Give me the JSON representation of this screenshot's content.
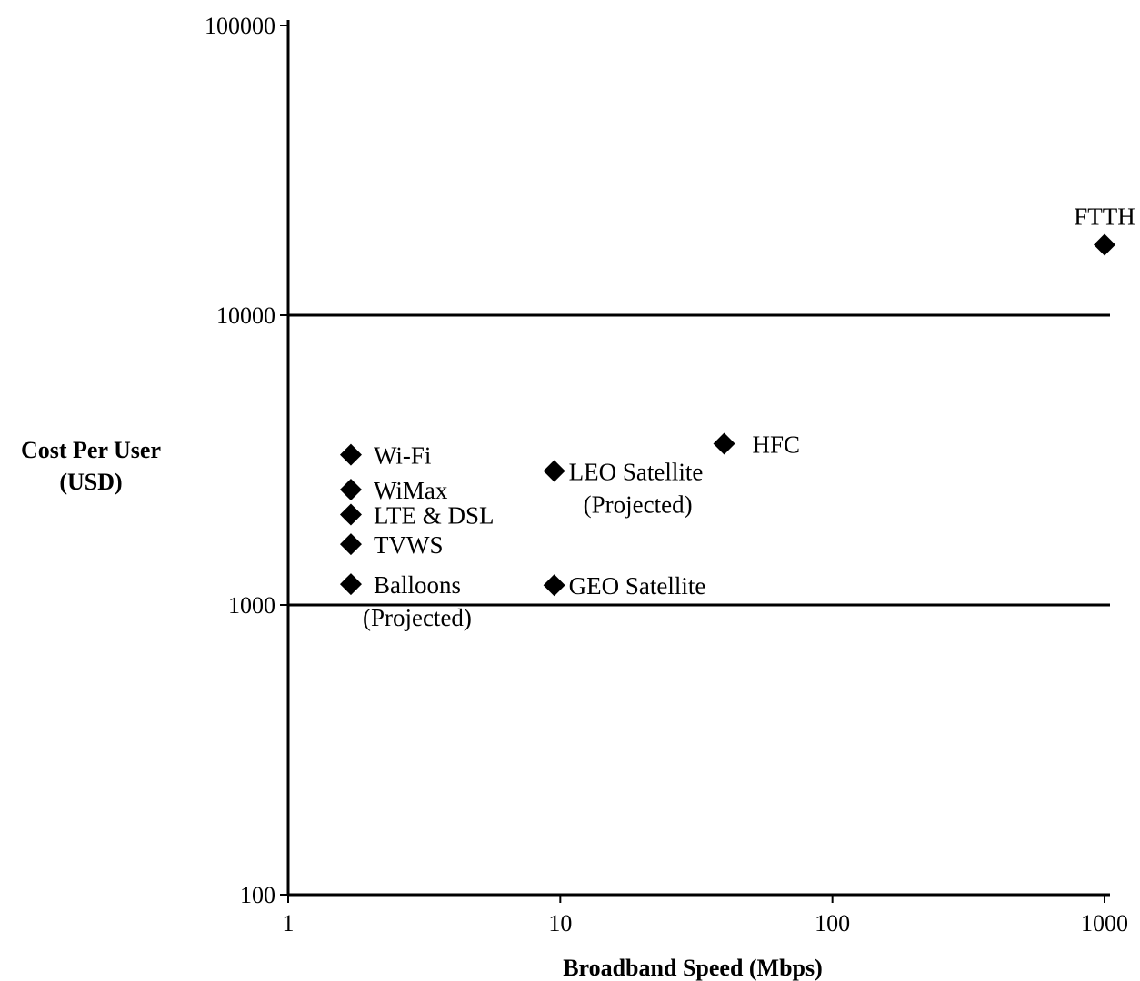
{
  "chart_data": {
    "type": "scatter",
    "title": "",
    "xlabel": "Broadband Speed (Mbps)",
    "ylabel_lines": [
      "Cost Per User",
      "(USD)"
    ],
    "x_scale": "log",
    "y_scale": "log",
    "xlim": [
      1,
      1000
    ],
    "ylim": [
      100,
      100000
    ],
    "x_ticks": [
      "1",
      "10",
      "100",
      "1000"
    ],
    "y_ticks": [
      "100",
      "1000",
      "10000",
      "100000"
    ],
    "gridlines_y": [
      1000,
      10000
    ],
    "marker": "diamond",
    "marker_color": "#000000",
    "points": [
      {
        "label_lines": [
          "Wi-Fi"
        ],
        "x": 1.7,
        "y": 3300,
        "label_pos": "right"
      },
      {
        "label_lines": [
          "WiMax"
        ],
        "x": 1.7,
        "y": 2500,
        "label_pos": "right"
      },
      {
        "label_lines": [
          "LTE & DSL"
        ],
        "x": 1.7,
        "y": 2050,
        "label_pos": "right"
      },
      {
        "label_lines": [
          "TVWS"
        ],
        "x": 1.7,
        "y": 1620,
        "label_pos": "right"
      },
      {
        "label_lines": [
          "Balloons",
          "(Projected)"
        ],
        "x": 1.7,
        "y": 1180,
        "label_pos": "right"
      },
      {
        "label_lines": [
          "LEO Satellite",
          "(Projected)"
        ],
        "x": 9.5,
        "y": 2900,
        "label_pos": "right"
      },
      {
        "label_lines": [
          "GEO Satellite"
        ],
        "x": 9.5,
        "y": 1170,
        "label_pos": "right"
      },
      {
        "label_lines": [
          "HFC"
        ],
        "x": 40,
        "y": 3600,
        "label_pos": "right"
      },
      {
        "label_lines": [
          "FTTH"
        ],
        "x": 1000,
        "y": 17500,
        "label_pos": "above"
      }
    ]
  }
}
